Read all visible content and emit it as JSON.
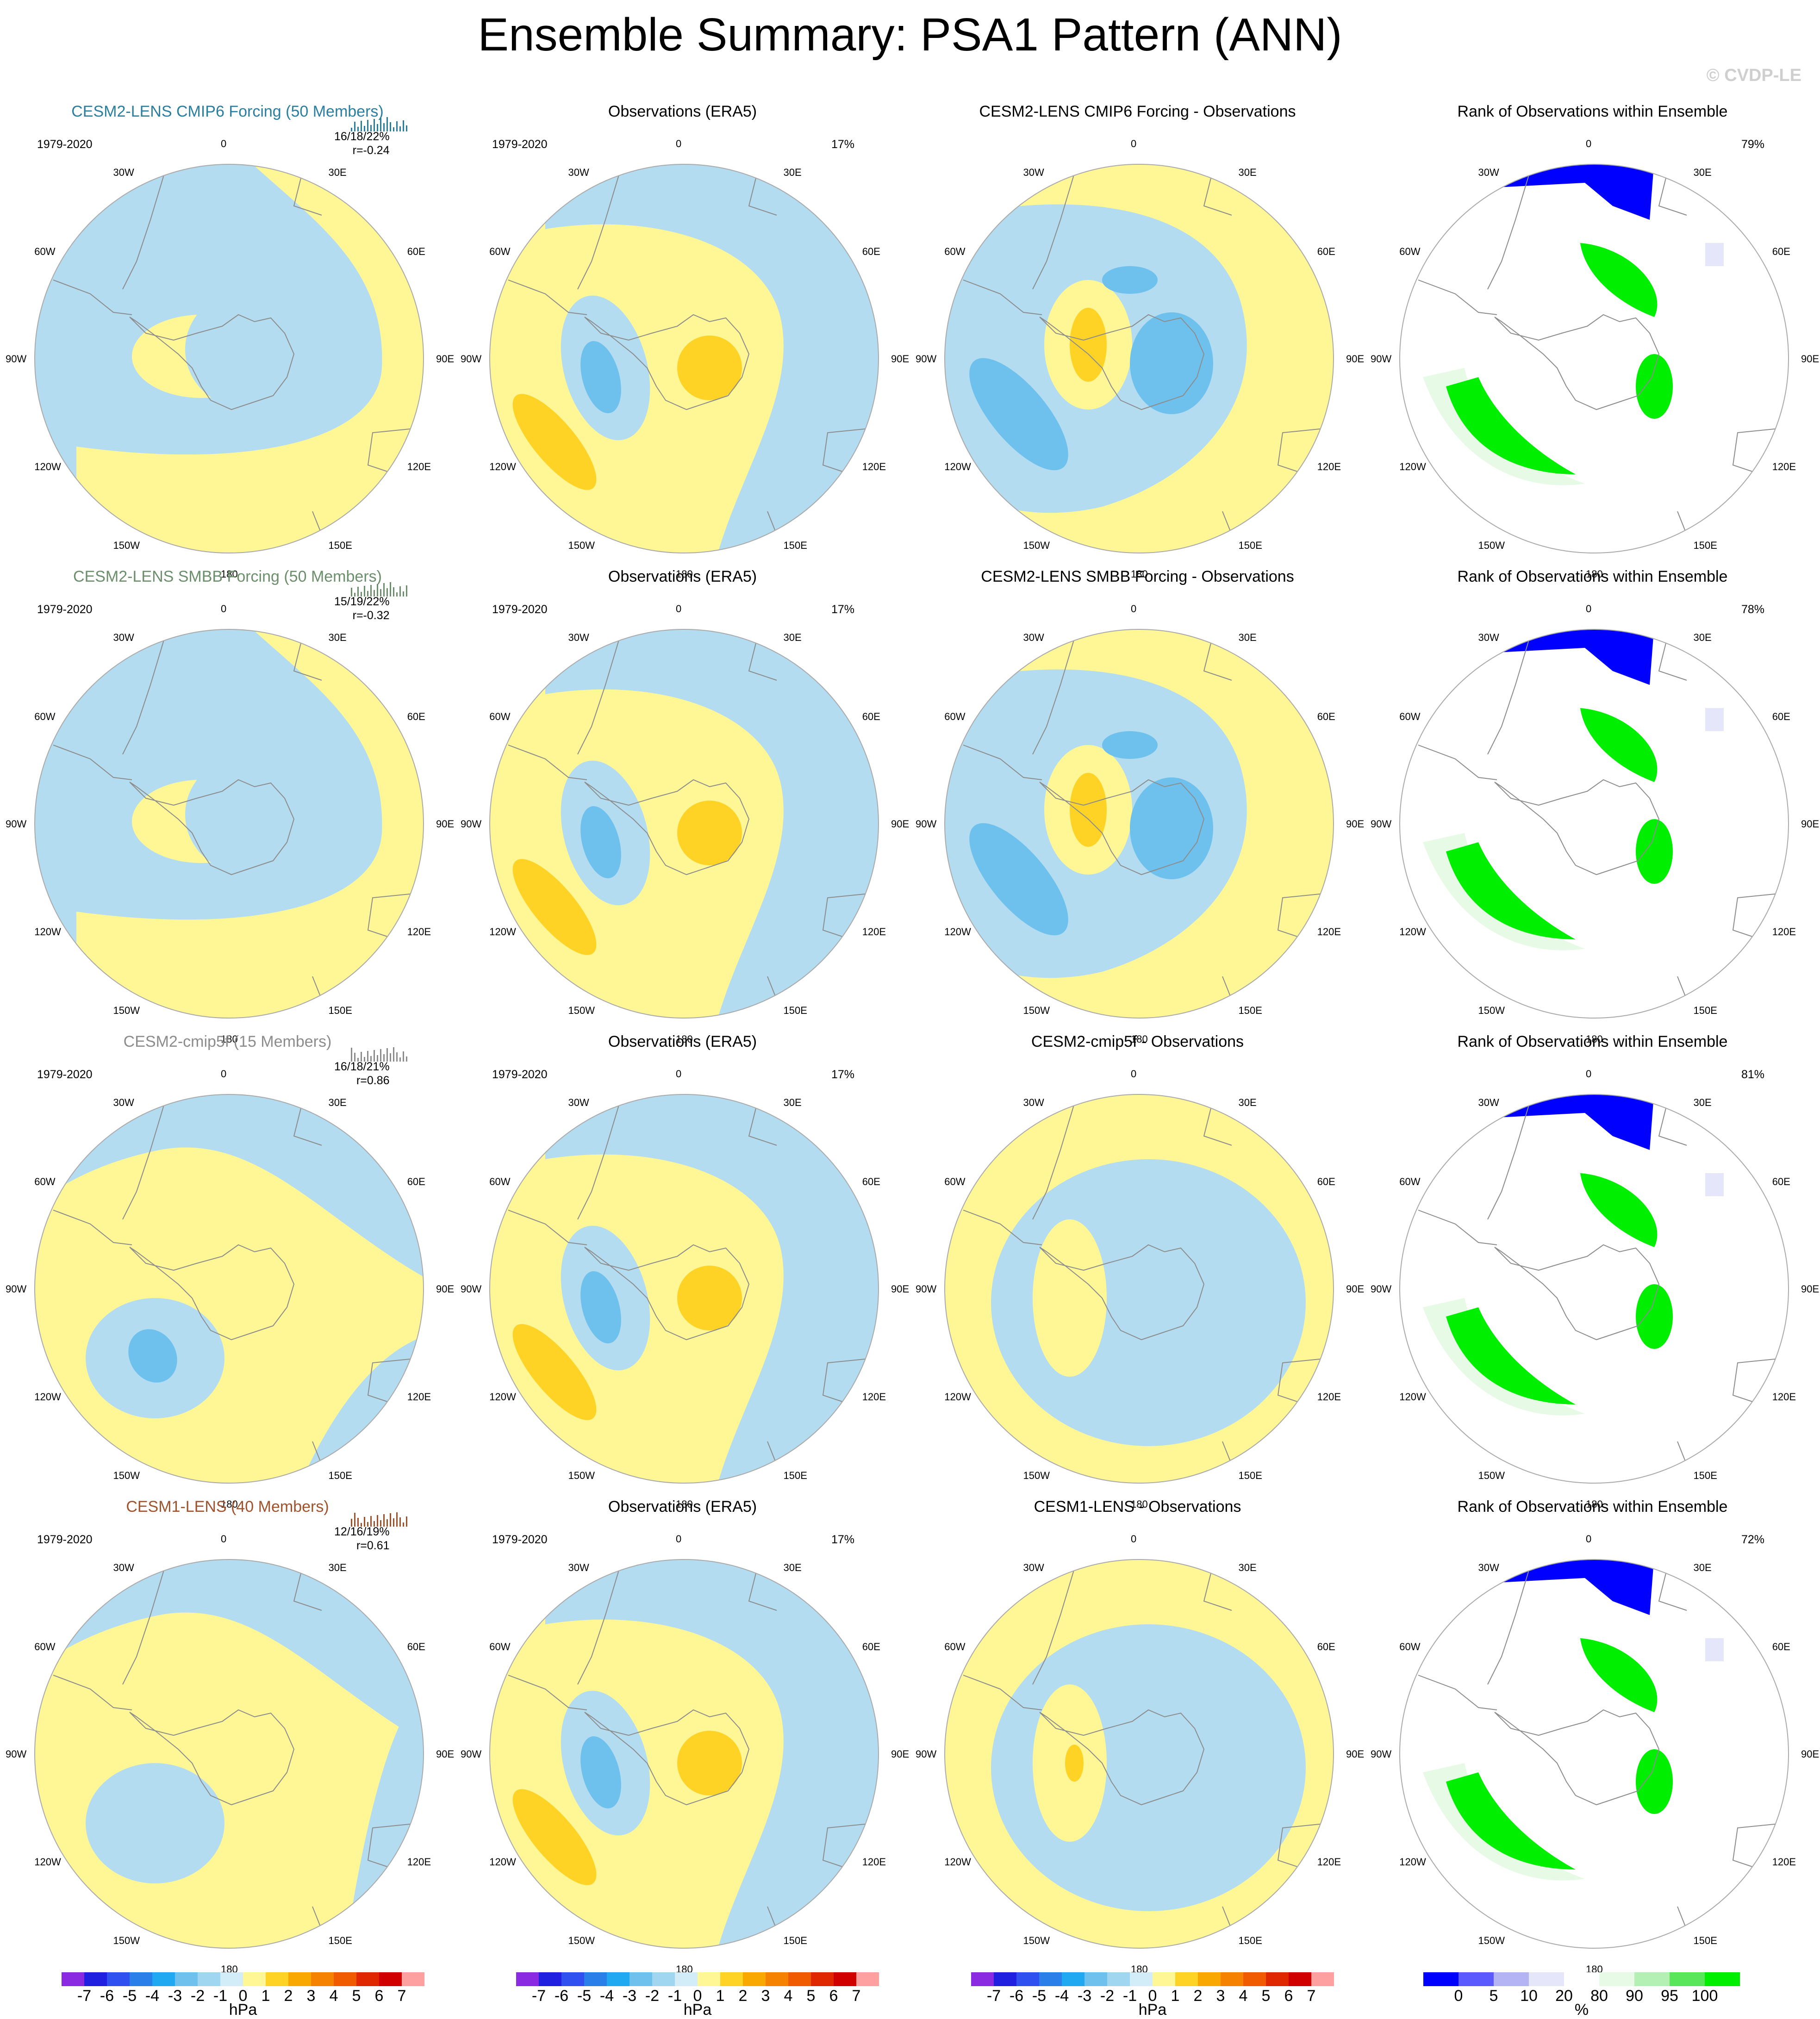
{
  "page": {
    "title": "Ensemble Summary: PSA1 Pattern (ANN)",
    "credit": "© CVDP-LE"
  },
  "colors": {
    "blue_light": "#b3dcf0",
    "blue_mid": "#6ec1ec",
    "yellow_light": "#fff796",
    "yellow_mid": "#fed325",
    "rank_low": "#0000ff",
    "rank_high": "#00ee00",
    "coast": "#8c8c8c"
  },
  "lon_labels": [
    "0",
    "30E",
    "60E",
    "90E",
    "120E",
    "150E",
    "180",
    "150W",
    "120W",
    "90W",
    "60W",
    "30W"
  ],
  "rows": [
    {
      "model": "CESM2-LENS CMIP6 Forcing (50 Members)",
      "period": "1979-2020",
      "stats": "16/18/22%",
      "corr": "r=-0.24",
      "obs_title": "Observations (ERA5)",
      "obs_period": "1979-2020",
      "obs_pct": "17%",
      "diff_title": "CESM2-LENS CMIP6 Forcing - Observations",
      "rank_title": "Rank of Observations within Ensemble",
      "rank_pct": "79%"
    },
    {
      "model": "CESM2-LENS SMBB Forcing (50 Members)",
      "period": "1979-2020",
      "stats": "15/19/22%",
      "corr": "r=-0.32",
      "obs_title": "Observations (ERA5)",
      "obs_period": "1979-2020",
      "obs_pct": "17%",
      "diff_title": "CESM2-LENS SMBB Forcing - Observations",
      "rank_title": "Rank of Observations within Ensemble",
      "rank_pct": "78%"
    },
    {
      "model": "CESM2-cmip5f (15 Members)",
      "period": "1979-2020",
      "stats": "16/18/21%",
      "corr": "r=0.86",
      "obs_title": "Observations (ERA5)",
      "obs_period": "1979-2020",
      "obs_pct": "17%",
      "diff_title": "CESM2-cmip5f - Observations",
      "rank_title": "Rank of Observations within Ensemble",
      "rank_pct": "81%"
    },
    {
      "model": "CESM1-LENS (40 Members)",
      "period": "1979-2020",
      "stats": "12/16/19%",
      "corr": "r=0.61",
      "obs_title": "Observations (ERA5)",
      "obs_period": "1979-2020",
      "obs_pct": "17%",
      "diff_title": "CESM1-LENS - Observations",
      "rank_title": "Rank of Observations within Ensemble",
      "rank_pct": "72%"
    }
  ],
  "colorbars": {
    "hpa": {
      "ticks": [
        "-7",
        "-6",
        "-5",
        "-4",
        "-3",
        "-2",
        "-1",
        "0",
        "1",
        "2",
        "3",
        "4",
        "5",
        "6",
        "7"
      ],
      "unit": "hPa",
      "colors": [
        "#8a2be2",
        "#2020e0",
        "#3050f0",
        "#2a7fe8",
        "#20a8f0",
        "#6ec1ec",
        "#a0d6f0",
        "#d2ecf8",
        "#fff796",
        "#fed325",
        "#f8a800",
        "#f58200",
        "#f05a00",
        "#e02800",
        "#d00000",
        "#ffa0a0"
      ]
    },
    "rank": {
      "ticks": [
        "0",
        "5",
        "10",
        "20",
        "80",
        "90",
        "95",
        "100"
      ],
      "unit": "%",
      "colors": [
        "#0000ff",
        "#5a5aff",
        "#b4b4f5",
        "#e6e6fa",
        "#ffffff",
        "#e6fae6",
        "#b4f0b4",
        "#5ae65a",
        "#00ee00"
      ]
    }
  }
}
